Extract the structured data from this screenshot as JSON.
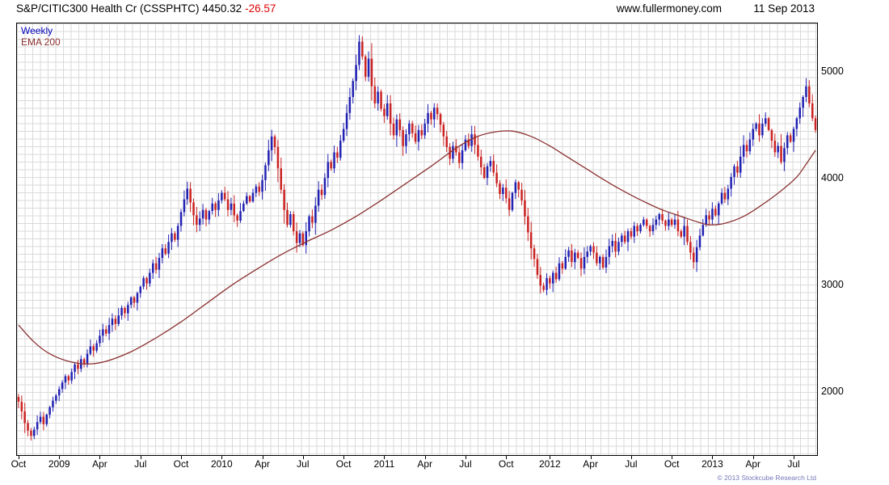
{
  "header": {
    "title_main": "S&P/CITIC300 Health Cr (CSSPHTC) 4450.32",
    "change": "-26.57",
    "website": "www.fullermoney.com",
    "date": "11 Sep 2013"
  },
  "legend": {
    "line1": "Weekly",
    "line2": "EMA 200"
  },
  "footer": {
    "copyright": "© 2013 Stockcube Research Ltd"
  },
  "colors": {
    "up": "#2121b4",
    "down": "#cc2222",
    "ema": "#8b3030",
    "change": "#dd0000",
    "legend_weekly": "#0000bb",
    "copyright": "#7777bb",
    "grid": "#dadada"
  },
  "chart_data": {
    "type": "candlestick",
    "instrument": "S&P/CITIC300 Health Cr",
    "symbol": "CSSPHTC",
    "timeframe": "Weekly",
    "overlay": "EMA 200",
    "last": 4450.32,
    "change": -26.57,
    "date": "11 Sep 2013",
    "grid": true,
    "legend_position": "top-left",
    "ylim": [
      1400,
      5450
    ],
    "y_ticks": [
      2000,
      3000,
      4000,
      5000
    ],
    "x_ticks": [
      {
        "week": 0,
        "label": "Oct"
      },
      {
        "week": 13,
        "label": "2009"
      },
      {
        "week": 26,
        "label": "Apr"
      },
      {
        "week": 39,
        "label": "Jul"
      },
      {
        "week": 52,
        "label": "Oct"
      },
      {
        "week": 65,
        "label": "2010"
      },
      {
        "week": 78,
        "label": "Apr"
      },
      {
        "week": 91,
        "label": "Jul"
      },
      {
        "week": 104,
        "label": "Oct"
      },
      {
        "week": 117,
        "label": "2011"
      },
      {
        "week": 130,
        "label": "Apr"
      },
      {
        "week": 143,
        "label": "Jul"
      },
      {
        "week": 156,
        "label": "Oct"
      },
      {
        "week": 170,
        "label": "2012"
      },
      {
        "week": 183,
        "label": "Apr"
      },
      {
        "week": 196,
        "label": "Jul"
      },
      {
        "week": 209,
        "label": "Oct"
      },
      {
        "week": 222,
        "label": "2013"
      },
      {
        "week": 235,
        "label": "Apr"
      },
      {
        "week": 248,
        "label": "Jul"
      }
    ],
    "weekly_close": [
      1900,
      1810,
      1700,
      1630,
      1580,
      1640,
      1710,
      1760,
      1690,
      1780,
      1850,
      1910,
      1960,
      2020,
      2080,
      2140,
      2100,
      2180,
      2250,
      2210,
      2300,
      2260,
      2350,
      2420,
      2380,
      2450,
      2520,
      2580,
      2540,
      2620,
      2680,
      2630,
      2710,
      2780,
      2730,
      2810,
      2880,
      2830,
      2920,
      2980,
      3060,
      3010,
      3110,
      3200,
      3140,
      3250,
      3340,
      3290,
      3400,
      3480,
      3420,
      3550,
      3680,
      3800,
      3900,
      3770,
      3650,
      3560,
      3620,
      3700,
      3610,
      3690,
      3760,
      3700,
      3790,
      3860,
      3800,
      3700,
      3760,
      3650,
      3600,
      3690,
      3760,
      3830,
      3780,
      3860,
      3920,
      3870,
      3980,
      4120,
      4260,
      4390,
      4290,
      4090,
      3890,
      3700,
      3560,
      3660,
      3500,
      3390,
      3480,
      3370,
      3500,
      3640,
      3580,
      3740,
      3890,
      3840,
      4000,
      4150,
      4090,
      4240,
      4190,
      4350,
      4460,
      4610,
      4760,
      4910,
      5060,
      5280,
      5140,
      4950,
      5120,
      4860,
      4700,
      4810,
      4650,
      4580,
      4700,
      4510,
      4400,
      4550,
      4450,
      4300,
      4410,
      4510,
      4420,
      4340,
      4450,
      4400,
      4510,
      4610,
      4550,
      4660,
      4600,
      4500,
      4390,
      4290,
      4180,
      4300,
      4240,
      4140,
      4260,
      4360,
      4300,
      4410,
      4310,
      4200,
      4100,
      4000,
      4110,
      4160,
      4050,
      3950,
      3850,
      3910,
      3810,
      3700,
      3860,
      3960,
      3890,
      3790,
      3640,
      3490,
      3340,
      3240,
      3090,
      2990,
      2950,
      3060,
      3010,
      3110,
      3050,
      3200,
      3150,
      3260,
      3320,
      3210,
      3300,
      3250,
      3150,
      3260,
      3310,
      3360,
      3300,
      3200,
      3260,
      3160,
      3260,
      3360,
      3410,
      3310,
      3400,
      3460,
      3400,
      3500,
      3450,
      3550,
      3500,
      3560,
      3610,
      3550,
      3500,
      3560,
      3610,
      3660,
      3600,
      3550,
      3610,
      3560,
      3610,
      3500,
      3450,
      3550,
      3400,
      3300,
      3210,
      3350,
      3460,
      3560,
      3650,
      3610,
      3710,
      3650,
      3760,
      3860,
      3800,
      3900,
      4010,
      4110,
      4050,
      4200,
      4310,
      4250,
      4360,
      4460,
      4510,
      4400,
      4510,
      4560,
      4450,
      4350,
      4240,
      4300,
      4150,
      4280,
      4400,
      4340,
      4460,
      4560,
      4660,
      4760,
      4860,
      4700,
      4560,
      4450
    ],
    "ema": {
      "weeks": [
        0,
        5,
        10,
        16,
        22,
        28,
        36,
        44,
        52,
        60,
        68,
        76,
        84,
        92,
        100,
        108,
        116,
        124,
        132,
        140,
        146,
        152,
        158,
        164,
        170,
        176,
        182,
        188,
        194,
        200,
        206,
        212,
        217,
        221,
        226,
        232,
        238,
        244,
        249,
        252,
        255
      ],
      "values": [
        2620,
        2460,
        2350,
        2280,
        2255,
        2280,
        2370,
        2500,
        2650,
        2820,
        2990,
        3140,
        3280,
        3400,
        3510,
        3640,
        3790,
        3950,
        4110,
        4280,
        4380,
        4430,
        4440,
        4390,
        4300,
        4190,
        4080,
        3970,
        3870,
        3780,
        3700,
        3640,
        3590,
        3560,
        3575,
        3640,
        3750,
        3880,
        4010,
        4130,
        4260
      ]
    }
  }
}
